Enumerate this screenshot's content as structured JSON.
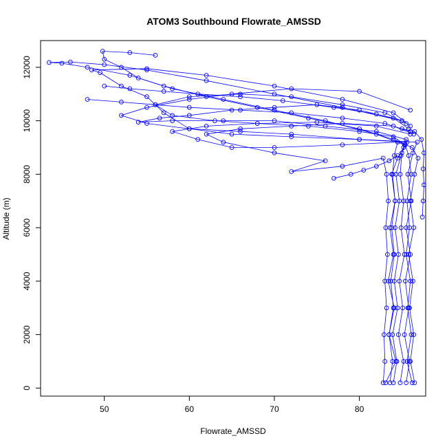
{
  "chart_data": {
    "type": "scatter",
    "title": "ATOM3 Southbound Flowrate_AMSSD",
    "xlabel": "Flowrate_AMSSD",
    "ylabel": "Altitude (m)",
    "xlim": [
      42.5,
      87.8
    ],
    "ylim": [
      -300,
      13000
    ],
    "x_ticks": [
      50,
      60,
      70,
      80
    ],
    "y_ticks": [
      0,
      2000,
      4000,
      6000,
      8000,
      10000,
      12000
    ],
    "marker": "open-circle",
    "line": true,
    "grid": false,
    "color": "#0000ff",
    "series": [
      {
        "values": [
          [
            83.1,
            200
          ],
          [
            84.3,
            1000
          ],
          [
            83.5,
            2000
          ],
          [
            84.1,
            3000
          ],
          [
            83.4,
            4000
          ],
          [
            84.0,
            5000
          ],
          [
            83.6,
            6000
          ],
          [
            84.2,
            7000
          ],
          [
            83.8,
            8000
          ],
          [
            84.5,
            8600
          ],
          [
            85.2,
            9000
          ],
          [
            85.5,
            9300
          ],
          [
            82.0,
            9600
          ],
          [
            76.0,
            9800
          ],
          [
            70.0,
            10000
          ],
          [
            64.0,
            10000
          ],
          [
            58.0,
            10000
          ],
          [
            54.0,
            9950
          ],
          [
            56.5,
            10100
          ],
          [
            60.0,
            10200
          ],
          [
            65.0,
            10400
          ],
          [
            70.0,
            10500
          ],
          [
            75.0,
            10600
          ],
          [
            80.0,
            10400
          ],
          [
            84.0,
            10100
          ],
          [
            85.8,
            9700
          ]
        ]
      },
      {
        "values": [
          [
            86.2,
            200
          ],
          [
            85.6,
            1000
          ],
          [
            86.1,
            2000
          ],
          [
            85.7,
            3000
          ],
          [
            86.0,
            4000
          ],
          [
            85.5,
            5000
          ],
          [
            85.9,
            6000
          ],
          [
            85.6,
            7000
          ],
          [
            86.1,
            8000
          ],
          [
            85.8,
            8700
          ],
          [
            85.4,
            9100
          ],
          [
            84.0,
            9400
          ],
          [
            80.0,
            9600
          ],
          [
            74.0,
            9800
          ],
          [
            68.0,
            9900
          ],
          [
            63.0,
            10000
          ],
          [
            58.0,
            10200
          ],
          [
            56.0,
            10600
          ],
          [
            60.0,
            10900
          ],
          [
            66.0,
            11000
          ],
          [
            72.0,
            10900
          ],
          [
            78.0,
            10600
          ],
          [
            83.0,
            10300
          ],
          [
            85.5,
            9900
          ]
        ]
      },
      {
        "values": [
          [
            84.8,
            200
          ],
          [
            85.2,
            1000
          ],
          [
            84.6,
            2000
          ],
          [
            85.1,
            3000
          ],
          [
            84.7,
            4000
          ],
          [
            85.3,
            5000
          ],
          [
            84.9,
            6000
          ],
          [
            85.2,
            7000
          ],
          [
            84.8,
            8000
          ],
          [
            85.0,
            8800
          ],
          [
            85.6,
            9200
          ],
          [
            80.0,
            9300
          ],
          [
            72.0,
            9400
          ],
          [
            65.0,
            9500
          ],
          [
            60.0,
            9700
          ],
          [
            57.0,
            10300
          ],
          [
            55.0,
            10900
          ],
          [
            52.0,
            11300
          ],
          [
            49.5,
            11800
          ],
          [
            48.5,
            11900
          ],
          [
            55.0,
            11950
          ],
          [
            62.0,
            11700
          ],
          [
            70.0,
            11300
          ],
          [
            78.0,
            10800
          ],
          [
            84.0,
            10300
          ],
          [
            86.0,
            9800
          ]
        ]
      },
      {
        "values": [
          [
            82.8,
            200
          ],
          [
            83.0,
            1000
          ],
          [
            82.9,
            2000
          ],
          [
            83.2,
            3000
          ],
          [
            83.0,
            4000
          ],
          [
            83.3,
            5000
          ],
          [
            83.1,
            6000
          ],
          [
            83.4,
            7000
          ],
          [
            83.2,
            8000
          ],
          [
            82.8,
            8600
          ],
          [
            78.0,
            8300
          ],
          [
            72.0,
            8100
          ],
          [
            76.0,
            8500
          ],
          [
            70.0,
            8800
          ],
          [
            64.0,
            9200
          ],
          [
            62.0,
            9500
          ],
          [
            66.0,
            9700
          ],
          [
            72.0,
            9800
          ],
          [
            78.0,
            9900
          ],
          [
            84.0,
            9800
          ],
          [
            86.4,
            9500
          ]
        ]
      },
      {
        "values": [
          [
            85.5,
            200
          ],
          [
            85.9,
            1000
          ],
          [
            85.3,
            2000
          ],
          [
            85.8,
            3000
          ],
          [
            85.4,
            4000
          ],
          [
            86.0,
            5000
          ],
          [
            85.5,
            6000
          ],
          [
            86.1,
            7000
          ],
          [
            85.7,
            8000
          ],
          [
            86.3,
            8800
          ],
          [
            86.8,
            9200
          ],
          [
            80.0,
            9300
          ],
          [
            72.0,
            9500
          ],
          [
            66.0,
            9600
          ],
          [
            60.0,
            9700
          ],
          [
            55.0,
            9900
          ],
          [
            52.0,
            10200
          ],
          [
            55.0,
            10500
          ],
          [
            60.0,
            10800
          ],
          [
            65.0,
            11000
          ],
          [
            72.0,
            11200
          ],
          [
            80.0,
            11100
          ],
          [
            86.0,
            10400
          ]
        ]
      },
      {
        "values": [
          [
            84.0,
            200
          ],
          [
            84.4,
            1000
          ],
          [
            83.9,
            2000
          ],
          [
            84.5,
            3000
          ],
          [
            84.1,
            4000
          ],
          [
            84.6,
            5000
          ],
          [
            84.2,
            6000
          ],
          [
            84.7,
            7000
          ],
          [
            84.3,
            8000
          ],
          [
            84.9,
            8700
          ],
          [
            85.3,
            9100
          ],
          [
            82.0,
            9500
          ],
          [
            76.0,
            10000
          ],
          [
            70.0,
            10400
          ],
          [
            64.0,
            10800
          ],
          [
            58.0,
            11200
          ],
          [
            54.0,
            11600
          ],
          [
            52.0,
            12000
          ],
          [
            50.0,
            12300
          ],
          [
            49.8,
            12600
          ],
          [
            53.0,
            12550
          ],
          [
            56.0,
            12450
          ]
        ]
      },
      {
        "values": [
          [
            86.5,
            200
          ],
          [
            86.0,
            1000
          ],
          [
            86.4,
            2000
          ],
          [
            85.9,
            3000
          ],
          [
            86.3,
            4000
          ],
          [
            85.8,
            5000
          ],
          [
            86.4,
            6000
          ],
          [
            86.0,
            7000
          ],
          [
            86.5,
            8000
          ],
          [
            86.9,
            8600
          ],
          [
            86.2,
            9000
          ],
          [
            84.0,
            9300
          ],
          [
            80.0,
            9700
          ],
          [
            74.0,
            10100
          ],
          [
            68.0,
            10500
          ],
          [
            62.0,
            10900
          ],
          [
            57.0,
            11300
          ],
          [
            53.0,
            11700
          ],
          [
            48.0,
            12000
          ],
          [
            45.0,
            12150
          ],
          [
            43.5,
            12180
          ],
          [
            46.0,
            12200
          ],
          [
            50.0,
            12100
          ],
          [
            55.0,
            11900
          ],
          [
            62.0,
            11500
          ],
          [
            70.0,
            11000
          ],
          [
            78.0,
            10500
          ],
          [
            85.0,
            10000
          ]
        ]
      },
      {
        "values": [
          [
            83.6,
            200
          ],
          [
            83.9,
            1000
          ],
          [
            83.5,
            2000
          ],
          [
            84.0,
            3000
          ],
          [
            83.7,
            4000
          ],
          [
            84.1,
            5000
          ],
          [
            83.8,
            6000
          ],
          [
            84.2,
            7000
          ],
          [
            83.9,
            8000
          ],
          [
            84.1,
            8700
          ],
          [
            84.5,
            9200
          ],
          [
            78.0,
            9100
          ],
          [
            70.0,
            9000
          ],
          [
            65.0,
            9000
          ],
          [
            61.0,
            9300
          ],
          [
            58.0,
            9600
          ],
          [
            62.0,
            9800
          ],
          [
            68.0,
            9900
          ],
          [
            75.0,
            9950
          ],
          [
            82.0,
            9800
          ],
          [
            86.0,
            9500
          ]
        ]
      },
      {
        "values": [
          [
            87.4,
            6400
          ],
          [
            87.5,
            7000
          ],
          [
            87.6,
            7600
          ],
          [
            87.5,
            8200
          ],
          [
            87.6,
            8800
          ],
          [
            87.3,
            9300
          ],
          [
            86.5,
            9600
          ],
          [
            85.0,
            9700
          ]
        ]
      },
      {
        "values": [
          [
            48.0,
            10800
          ],
          [
            52.0,
            10700
          ],
          [
            56.0,
            10600
          ],
          [
            60.0,
            10500
          ],
          [
            66.0,
            10400
          ],
          [
            72.0,
            10300
          ],
          [
            78.0,
            10100
          ],
          [
            83.0,
            9900
          ],
          [
            86.0,
            9600
          ]
        ]
      },
      {
        "values": [
          [
            77.0,
            7850
          ],
          [
            79.0,
            8000
          ],
          [
            80.5,
            8150
          ],
          [
            82.0,
            8300
          ],
          [
            83.5,
            8500
          ],
          [
            84.5,
            8700
          ]
        ]
      },
      {
        "values": [
          [
            50.0,
            11300
          ],
          [
            53.0,
            11200
          ],
          [
            57.0,
            11100
          ],
          [
            61.0,
            11000
          ],
          [
            66.0,
            10900
          ],
          [
            71.0,
            10750
          ],
          [
            77.0,
            10500
          ],
          [
            82.0,
            10250
          ],
          [
            85.0,
            10000
          ]
        ]
      }
    ]
  }
}
